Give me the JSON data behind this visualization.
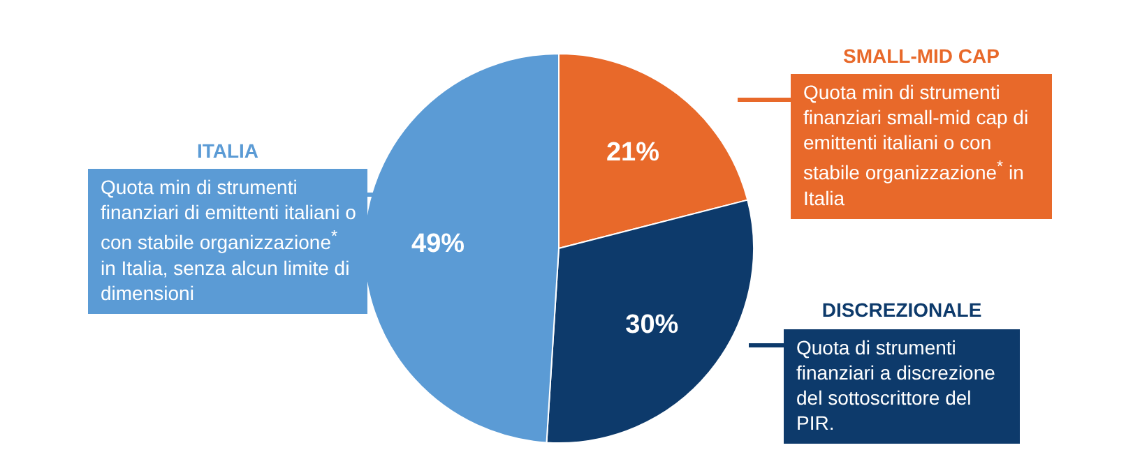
{
  "chart_data": {
    "type": "pie",
    "categories": [
      "SMALL-MID CAP",
      "DISCREZIONALE",
      "ITALIA"
    ],
    "values": [
      21,
      30,
      49
    ],
    "colors": [
      "#e8692a",
      "#0d3a6b",
      "#5b9bd5"
    ],
    "value_labels": [
      "21%",
      "30%",
      "49%"
    ],
    "legend": false,
    "annotations": [
      "Quota min di strumenti finanziari small-mid cap di emittenti italiani o con stabile organizzazione$^{*}$ in Italia",
      "Quota di strumenti finanziari a discrezione del sottoscrittore del PIR.",
      "Quota min di strumenti finanziari di emittenti italiani o con stabile organizzazione$^{*}$ in Italia, senza alcun limite di dimensioni"
    ]
  }
}
